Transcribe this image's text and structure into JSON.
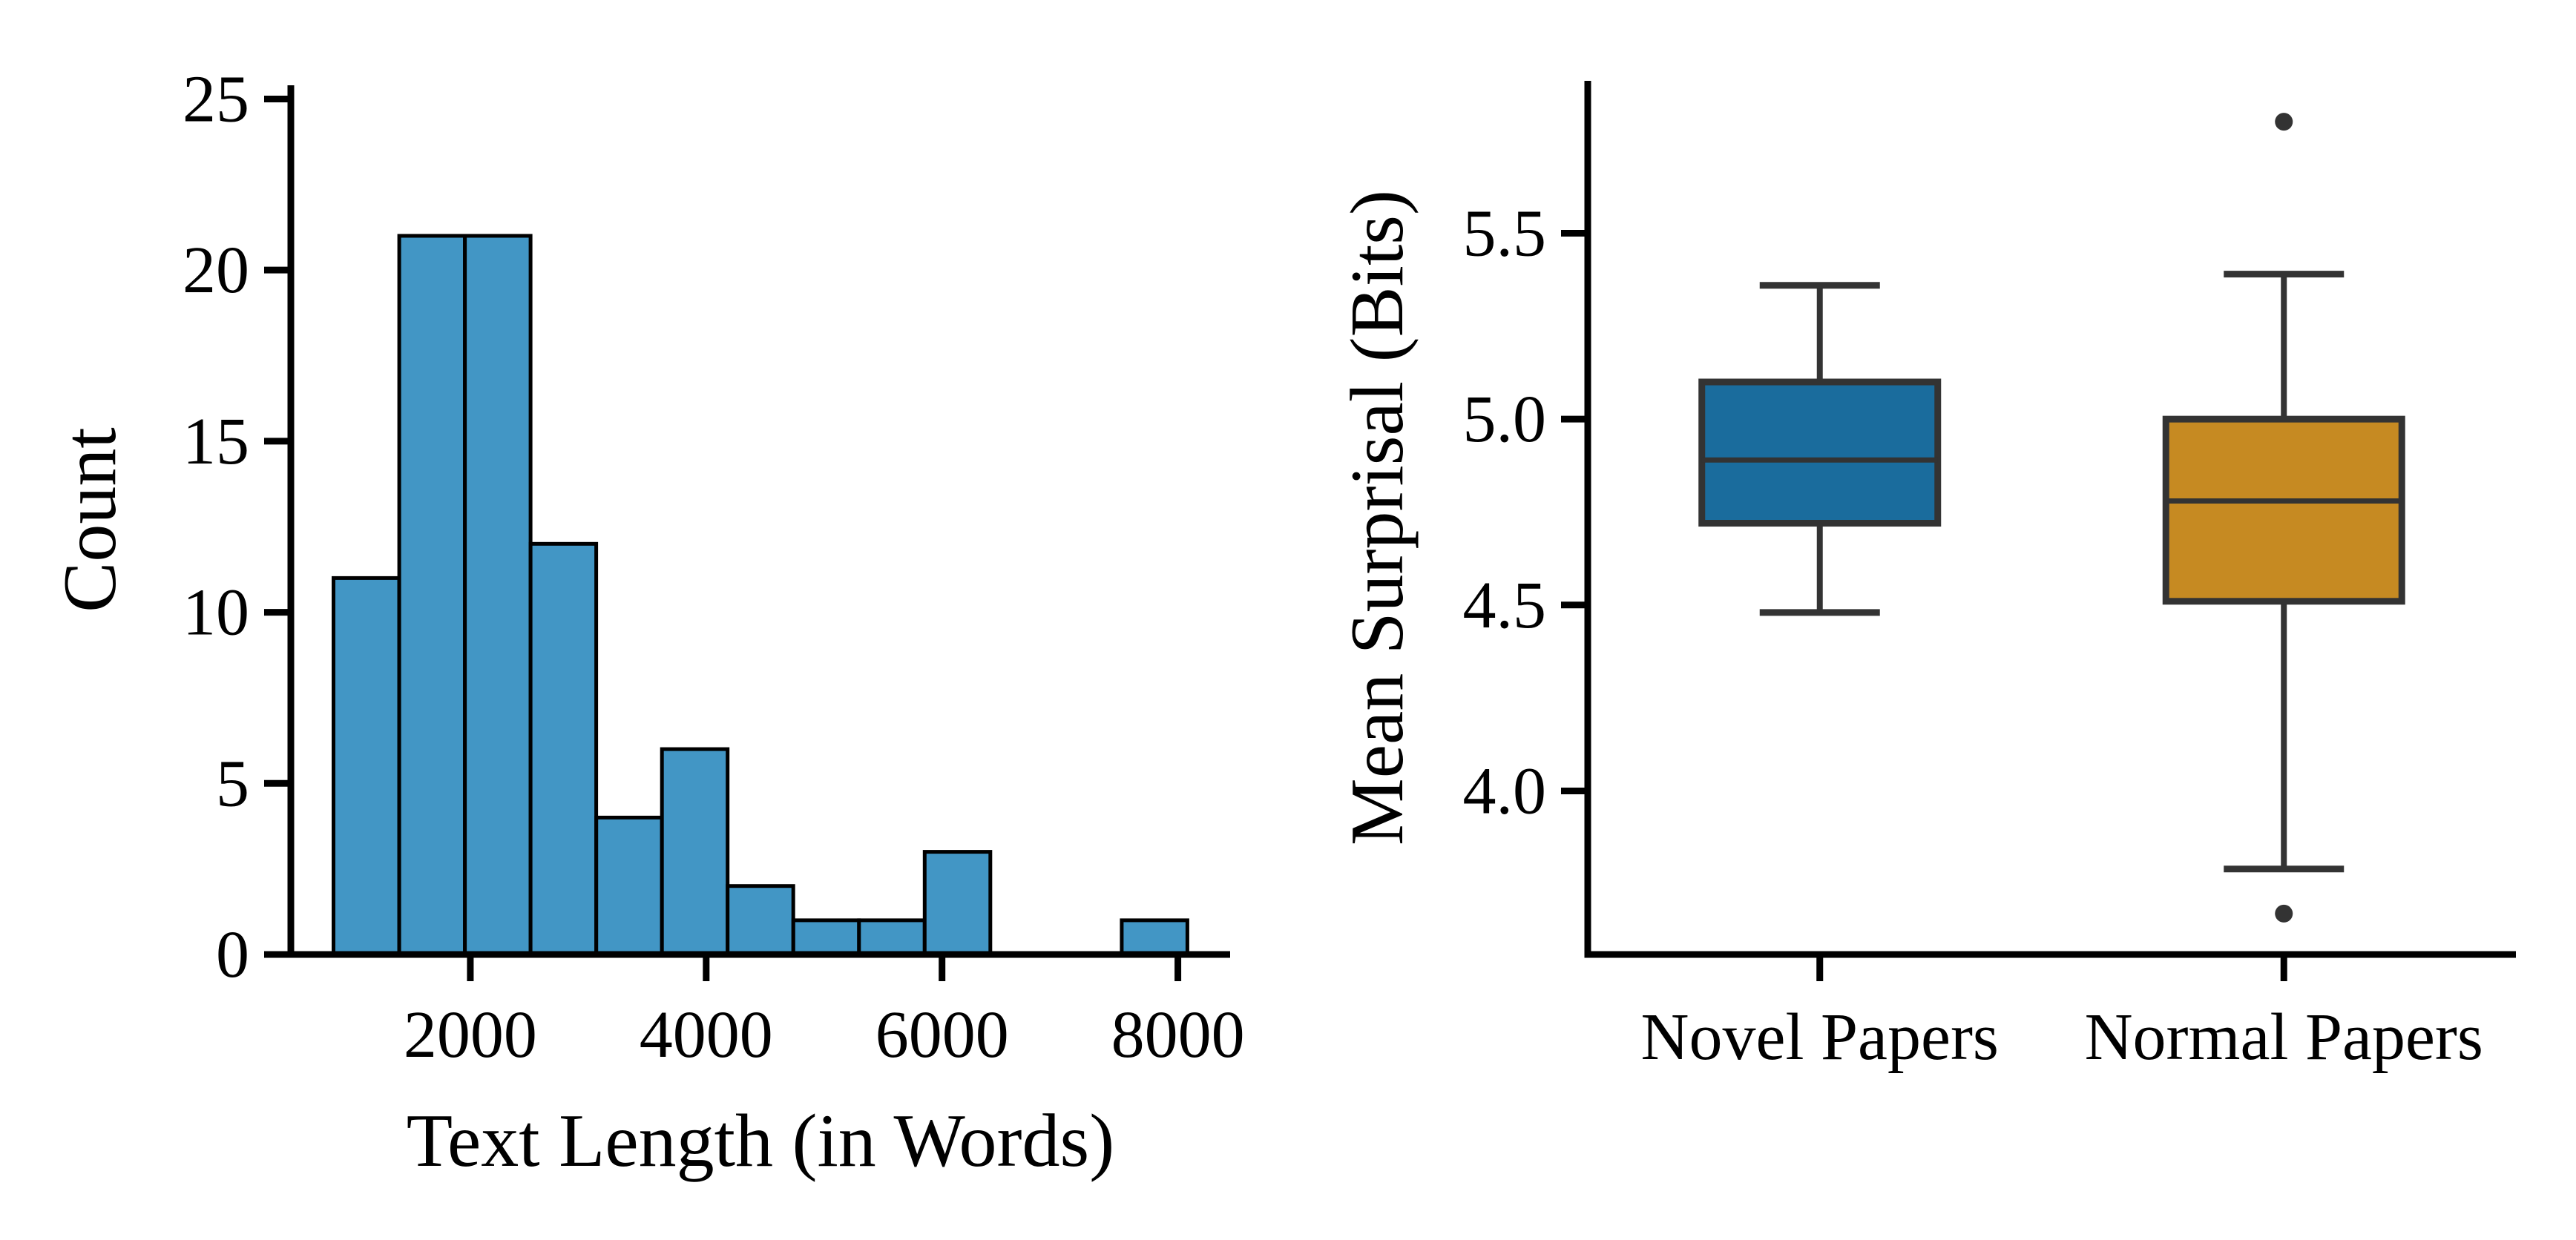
{
  "figure": {
    "background": "#ffffff",
    "axis_color": "#000000",
    "box_line_color": "#333333"
  },
  "chart_data": [
    {
      "type": "histogram",
      "title": "",
      "xlabel": "Text Length (in Words)",
      "ylabel": "Count",
      "bar_fill": "#4296C5",
      "bar_edge": "#000000",
      "bin_start": 840,
      "bin_width": 557,
      "counts": [
        11,
        21,
        21,
        12,
        4,
        6,
        2,
        1,
        1,
        3,
        0,
        0,
        1
      ],
      "xticks": [
        2000,
        4000,
        6000,
        8000
      ],
      "xtick_labels": [
        "2000",
        "4000",
        "6000",
        "8000"
      ],
      "yticks": [
        0,
        5,
        10,
        15,
        20,
        25
      ],
      "ytick_labels": [
        "0",
        "5",
        "10",
        "15",
        "20",
        "25"
      ],
      "xlim": [
        478,
        8443
      ],
      "ylim": [
        0,
        25.4
      ],
      "grid": false,
      "legend": false
    },
    {
      "type": "boxplot",
      "title": "",
      "xlabel": "",
      "ylabel": "Mean Surprisal (Bits)",
      "categories": [
        "Novel Papers",
        "Normal Papers"
      ],
      "series": [
        {
          "name": "Novel Papers",
          "box_fill": "#1A6C9D",
          "whisker_low": 4.48,
          "q1": 4.72,
          "median": 4.89,
          "q3": 5.1,
          "whisker_high": 5.36,
          "outliers": []
        },
        {
          "name": "Normal Papers",
          "box_fill": "#C68A22",
          "whisker_low": 3.79,
          "q1": 4.51,
          "median": 4.78,
          "q3": 5.0,
          "whisker_high": 5.39,
          "outliers": [
            5.8,
            3.67
          ]
        }
      ],
      "yticks": [
        4.0,
        4.5,
        5.0,
        5.5
      ],
      "ytick_labels": [
        "4.0",
        "4.5",
        "5.0",
        "5.5"
      ],
      "ylim": [
        3.56,
        5.91
      ],
      "xlim": [
        -0.5,
        1.5
      ],
      "line_color": "#333333",
      "grid": false,
      "legend": false
    }
  ]
}
